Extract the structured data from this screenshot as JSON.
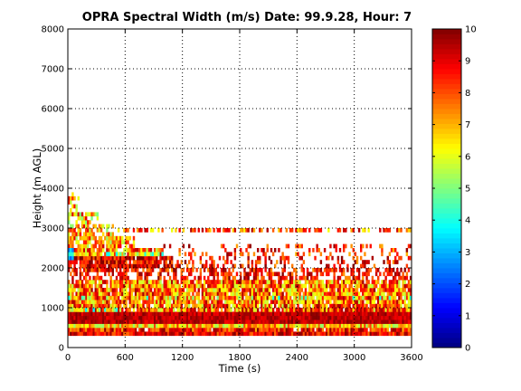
{
  "chart_data": {
    "type": "heatmap",
    "title": "OPRA Spectral Width (m/s)  Date: 99.9.28, Hour: 7",
    "xlabel": "Time (s)",
    "ylabel": "Height (m AGL)",
    "xlim": [
      0,
      3600
    ],
    "ylim": [
      0,
      8000
    ],
    "xticks": [
      "0",
      "600",
      "1200",
      "1800",
      "2400",
      "3000",
      "3600"
    ],
    "yticks": [
      "0",
      "1000",
      "2000",
      "3000",
      "4000",
      "5000",
      "6000",
      "7000",
      "8000"
    ],
    "grid": true,
    "colorbar": {
      "min": 0,
      "max": 10,
      "ticks": [
        "0",
        "1",
        "2",
        "3",
        "4",
        "5",
        "6",
        "7",
        "8",
        "9",
        "10"
      ],
      "colormap": "jet"
    },
    "bins": {
      "time_step_s": 20,
      "height_step_m": 100
    },
    "layers": [
      {
        "h0": 300,
        "h1": 400,
        "t0": 0,
        "t1": 3600,
        "mean": 8.8,
        "spread": 1.2,
        "fill": 1.0
      },
      {
        "h0": 400,
        "h1": 500,
        "t0": 0,
        "t1": 3600,
        "mean": 8.5,
        "spread": 1.5,
        "fill": 0.95
      },
      {
        "h0": 500,
        "h1": 600,
        "t0": 0,
        "t1": 3600,
        "mean": 6.8,
        "spread": 1.6,
        "fill": 1.0
      },
      {
        "h0": 600,
        "h1": 900,
        "t0": 0,
        "t1": 3600,
        "mean": 9.4,
        "spread": 0.6,
        "fill": 1.0
      },
      {
        "h0": 900,
        "h1": 1700,
        "t0": 0,
        "t1": 3600,
        "mean": 7.6,
        "spread": 2.1,
        "fill": 0.92
      },
      {
        "h0": 1700,
        "h1": 2000,
        "t0": 0,
        "t1": 3600,
        "mean": 8.6,
        "spread": 1.3,
        "fill": 0.55
      },
      {
        "h0": 2000,
        "h1": 2300,
        "t0": 0,
        "t1": 1100,
        "mean": 8.9,
        "spread": 1.3,
        "fill": 0.9
      },
      {
        "h0": 2000,
        "h1": 2300,
        "t0": 1100,
        "t1": 3600,
        "mean": 8.6,
        "spread": 1.4,
        "fill": 0.3
      },
      {
        "h0": 2300,
        "h1": 2500,
        "t0": 0,
        "t1": 1000,
        "mean": 7.6,
        "spread": 2.0,
        "fill": 0.85
      },
      {
        "h0": 2300,
        "h1": 2600,
        "t0": 1000,
        "t1": 3600,
        "mean": 8.4,
        "spread": 1.5,
        "fill": 0.22
      },
      {
        "h0": 2500,
        "h1": 2800,
        "t0": 0,
        "t1": 700,
        "mean": 7.2,
        "spread": 2.0,
        "fill": 0.8
      },
      {
        "h0": 2800,
        "h1": 3100,
        "t0": 0,
        "t1": 480,
        "mean": 7.0,
        "spread": 2.0,
        "fill": 0.7
      },
      {
        "h0": 2900,
        "h1": 3000,
        "t0": 480,
        "t1": 3600,
        "mean": 7.8,
        "spread": 1.8,
        "fill": 0.55
      },
      {
        "h0": 3100,
        "h1": 3400,
        "t0": 0,
        "t1": 320,
        "mean": 7.0,
        "spread": 2.2,
        "fill": 0.6
      },
      {
        "h0": 3400,
        "h1": 3900,
        "t0": 0,
        "t1": 120,
        "mean": 7.4,
        "spread": 2.0,
        "fill": 0.55
      },
      {
        "h0": 2200,
        "h1": 2500,
        "t0": 0,
        "t1": 60,
        "mean": 3.2,
        "spread": 1.0,
        "fill": 0.9
      },
      {
        "h0": 2300,
        "h1": 2400,
        "t0": 400,
        "t1": 1000,
        "mean": 5.0,
        "spread": 1.5,
        "fill": 0.6
      },
      {
        "h0": 1200,
        "h1": 1300,
        "t0": 0,
        "t1": 3600,
        "mean": 5.8,
        "spread": 2.0,
        "fill": 0.35
      },
      {
        "h0": 900,
        "h1": 1000,
        "t0": 0,
        "t1": 600,
        "mean": 5.5,
        "spread": 2.0,
        "fill": 0.6
      }
    ]
  }
}
